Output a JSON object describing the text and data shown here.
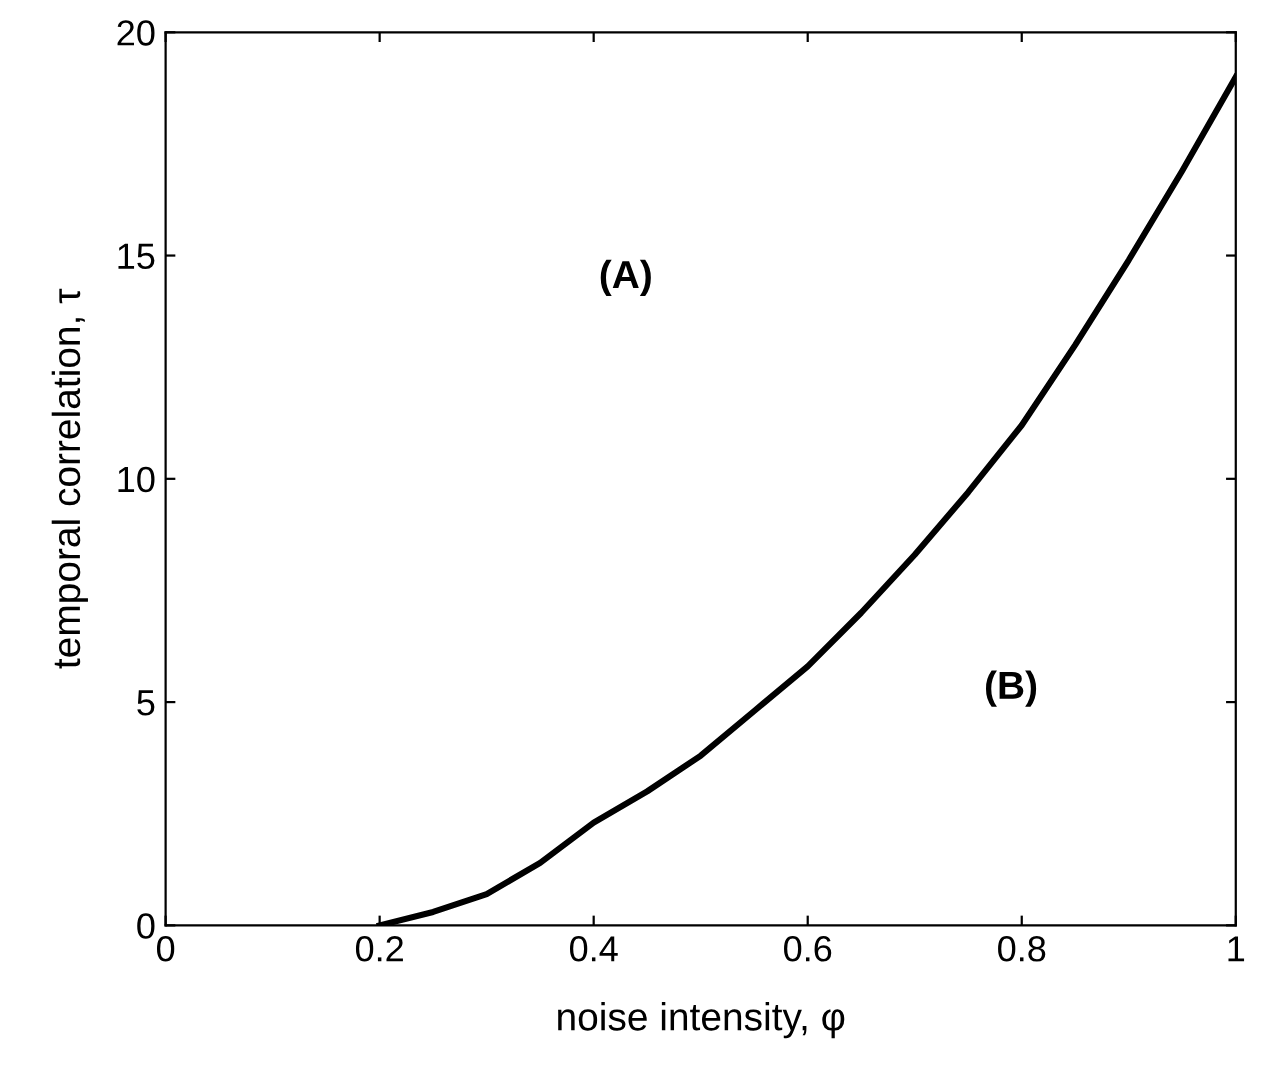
{
  "chart_data": {
    "type": "line",
    "xlabel": "noise intensity, φ",
    "ylabel": "temporal correlation, τ",
    "xlim": [
      0,
      1
    ],
    "ylim": [
      0,
      20
    ],
    "xticks": [
      0,
      {
        "value": 0.2,
        "label": "0.2"
      },
      {
        "value": 0.4,
        "label": "0.4"
      },
      {
        "value": 0.6,
        "label": "0.6"
      },
      {
        "value": 0.8,
        "label": "0.8"
      },
      1
    ],
    "yticks": [
      0,
      5,
      10,
      15,
      20
    ],
    "x": [
      0.2,
      0.25,
      0.3,
      0.35,
      0.4,
      0.45,
      0.5,
      0.55,
      0.6,
      0.65,
      0.7,
      0.75,
      0.8,
      0.85,
      0.9,
      0.95,
      1.0
    ],
    "series": [
      {
        "color": "#000000",
        "values": [
          0,
          0.3,
          0.7,
          1.4,
          2.3,
          3.0,
          3.8,
          4.8,
          5.8,
          7.0,
          8.3,
          9.7,
          11.2,
          13.0,
          14.9,
          16.9,
          19.0
        ]
      }
    ],
    "annotations": [
      "(A)",
      "(B)"
    ],
    "grid": false,
    "legend": false,
    "line_style": "solid",
    "marker": "none"
  }
}
